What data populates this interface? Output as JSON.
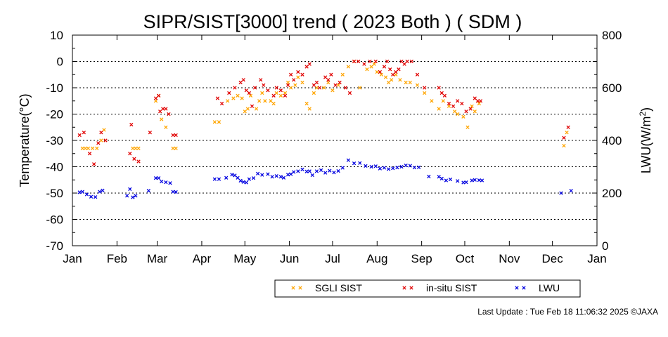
{
  "chart_data": {
    "type": "scatter",
    "title": "SIPR/SIST[3000] trend ( 2023 Both ) ( SDM )",
    "ylabel": "Temperature(°C)",
    "y2label_main": "LWU(W/m",
    "y2label_sup": "2",
    "y2label_tail": ")",
    "xlabel": "",
    "ylim": [
      -70,
      10
    ],
    "y2lim": [
      0,
      800
    ],
    "xlim": [
      0,
      365
    ],
    "grid": "horizontal dotted",
    "legend_placement": "bottom-right",
    "yticks": [
      "10",
      "0",
      "-10",
      "-20",
      "-30",
      "-40",
      "-50",
      "-60",
      "-70"
    ],
    "y2ticks": [
      "800",
      "600",
      "400",
      "200",
      "0"
    ],
    "months": [
      "Jan",
      "Feb",
      "Mar",
      "Apr",
      "May",
      "Jun",
      "Jul",
      "Aug",
      "Sep",
      "Oct",
      "Nov",
      "Dec",
      "Jan"
    ],
    "month_starts": [
      0,
      31,
      59,
      90,
      120,
      151,
      181,
      212,
      243,
      273,
      304,
      334,
      365
    ],
    "series": [
      {
        "name": "SGLI SIST",
        "color": "#ffa500",
        "axis": "left",
        "x": [
          7,
          9,
          11,
          14,
          17,
          20,
          22,
          42,
          44,
          46,
          58,
          60,
          62,
          65,
          70,
          72,
          99,
          102,
          108,
          112,
          115,
          118,
          120,
          122,
          124,
          128,
          130,
          132,
          134,
          138,
          140,
          142,
          145,
          148,
          150,
          152,
          155,
          157,
          160,
          163,
          165,
          168,
          170,
          175,
          178,
          181,
          185,
          188,
          192,
          196,
          200,
          205,
          208,
          210,
          212,
          215,
          218,
          220,
          222,
          225,
          228,
          232,
          235,
          240,
          245,
          250,
          255,
          258,
          262,
          266,
          268,
          272,
          275,
          278,
          280,
          283,
          342,
          344
        ],
        "y": [
          -33,
          -33,
          -33,
          -33,
          -33,
          -30,
          -26,
          -33,
          -33,
          -33,
          -15,
          -13,
          -22,
          -25,
          -33,
          -33,
          -23,
          -23,
          -15,
          -14,
          -13,
          -14,
          -19,
          -18,
          -13,
          -18,
          -15,
          -12,
          -15,
          -15,
          -16,
          -12,
          -13,
          -12,
          -8,
          -10,
          -9,
          -6,
          -8,
          -16,
          -18,
          -12,
          -10,
          -10,
          -8,
          -11,
          -9,
          -5,
          -2,
          0,
          -10,
          -3,
          -2,
          -1,
          -4,
          -5,
          -6,
          -8,
          -7,
          -5,
          -7,
          -8,
          -8,
          -9,
          -12,
          -15,
          -18,
          -15,
          -17,
          -19,
          -20,
          -21,
          -25,
          -17,
          -19,
          -16,
          -32,
          -27
        ]
      },
      {
        "name": "in-situ SIST",
        "color": "#e00000",
        "axis": "left",
        "x": [
          5,
          8,
          12,
          15,
          18,
          20,
          23,
          40,
          41,
          43,
          46,
          54,
          58,
          60,
          61,
          63,
          65,
          67,
          70,
          72,
          101,
          104,
          109,
          113,
          117,
          119,
          121,
          123,
          125,
          127,
          131,
          133,
          136,
          140,
          142,
          145,
          148,
          150,
          152,
          154,
          157,
          160,
          163,
          165,
          168,
          170,
          172,
          176,
          178,
          180,
          183,
          186,
          190,
          193,
          196,
          199,
          203,
          207,
          211,
          214,
          217,
          219,
          221,
          223,
          225,
          227,
          229,
          231,
          233,
          236,
          240,
          245,
          255,
          257,
          259,
          262,
          265,
          268,
          271,
          274,
          277,
          280,
          282,
          284,
          342,
          345
        ],
        "y": [
          -28,
          -27,
          -35,
          -39,
          -31,
          -27,
          -30,
          -35,
          -24,
          -37,
          -38,
          -27,
          -14,
          -13,
          -19,
          -18,
          -18,
          -20,
          -28,
          -28,
          -14,
          -16,
          -12,
          -10,
          -8,
          -7,
          -11,
          -12,
          -17,
          -10,
          -7,
          -9,
          -11,
          -13,
          -10,
          -11,
          -13,
          -9,
          -5,
          -7,
          -4,
          -5,
          -2,
          -1,
          -9,
          -8,
          -10,
          -6,
          -7,
          -5,
          -9,
          -8,
          -10,
          -12,
          0,
          0,
          -1,
          0,
          0,
          -4,
          -2,
          0,
          -3,
          -5,
          -4,
          -3,
          0,
          -1,
          0,
          0,
          -5,
          -10,
          -10,
          -12,
          -13,
          -16,
          -17,
          -15,
          -16,
          -19,
          -18,
          -14,
          -15,
          -15,
          -29,
          -25
        ]
      },
      {
        "name": "LWU",
        "color": "#0000e0",
        "axis": "right",
        "x": [
          5,
          7,
          10,
          13,
          16,
          19,
          21,
          38,
          40,
          42,
          44,
          53,
          58,
          60,
          62,
          65,
          68,
          70,
          72,
          99,
          102,
          107,
          111,
          113,
          115,
          117,
          119,
          121,
          123,
          126,
          129,
          132,
          136,
          139,
          142,
          145,
          147,
          150,
          152,
          154,
          157,
          160,
          163,
          165,
          167,
          170,
          173,
          176,
          179,
          182,
          185,
          188,
          192,
          196,
          200,
          204,
          208,
          211,
          214,
          217,
          220,
          223,
          226,
          229,
          232,
          235,
          238,
          241,
          248,
          255,
          257,
          260,
          263,
          268,
          272,
          274,
          278,
          280,
          283,
          285,
          340,
          347
        ],
        "y": [
          203,
          205,
          195,
          186,
          185,
          205,
          210,
          190,
          215,
          184,
          190,
          209,
          257,
          257,
          244,
          241,
          238,
          205,
          204,
          253,
          253,
          258,
          270,
          267,
          258,
          247,
          242,
          240,
          253,
          257,
          274,
          269,
          272,
          262,
          265,
          262,
          258,
          270,
          272,
          280,
          283,
          290,
          282,
          283,
          268,
          283,
          287,
          277,
          285,
          278,
          284,
          296,
          325,
          313,
          314,
          303,
          300,
          302,
          293,
          296,
          291,
          294,
          297,
          300,
          305,
          304,
          297,
          298,
          263,
          262,
          255,
          248,
          252,
          246,
          240,
          241,
          248,
          250,
          249,
          248,
          200,
          209
        ]
      }
    ]
  },
  "footer": {
    "last_update": "Last Update : Tue Feb 18 11:06:32 2025  ©JAXA"
  }
}
